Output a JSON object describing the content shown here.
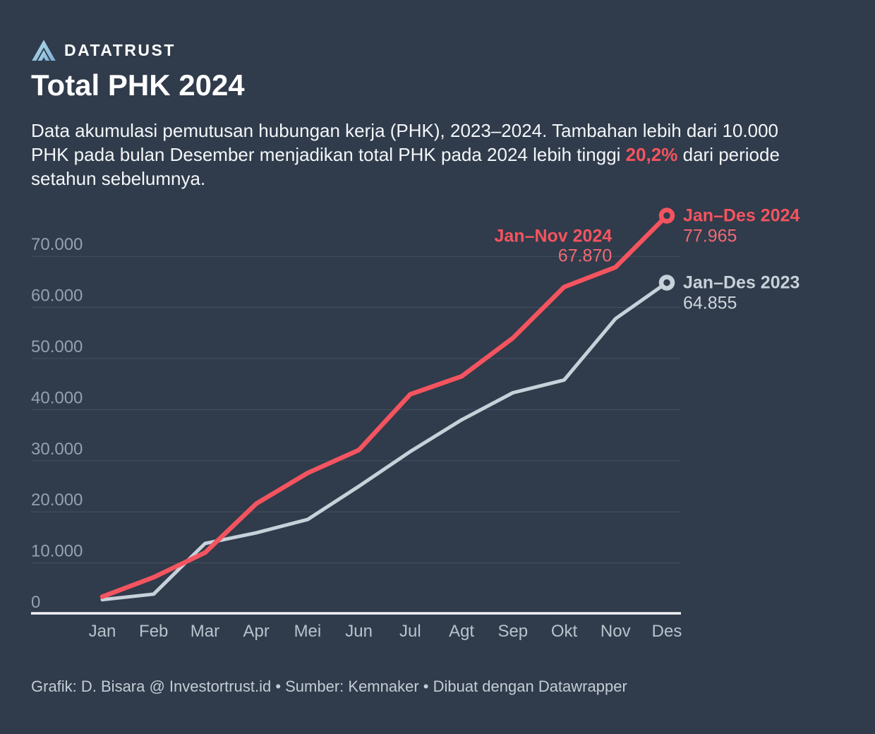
{
  "brand": {
    "name": "DATATRUST",
    "logo_icon": "datatrust-mark"
  },
  "title": "Total PHK 2024",
  "description": {
    "lines": [
      {
        "parts": [
          {
            "text": "Data akumulasi pemutusan hubungan kerja (PHK), 2023–2024. Tambahan lebih dari 10.000"
          }
        ]
      },
      {
        "parts": [
          {
            "text": "PHK pada bulan Desember menjadikan total PHK pada 2024 lebih tinggi "
          },
          {
            "text": "20,2%",
            "highlight": true
          },
          {
            "text": " dari periode"
          }
        ]
      },
      {
        "parts": [
          {
            "text": "setahun sebelumnya."
          }
        ]
      }
    ]
  },
  "footer": {
    "text": "Grafik: D. Bisara @ Investortrust.id • Sumber: Kemnaker • Dibuat dengan Datawrapper"
  },
  "colors": {
    "background": "#303b4b",
    "accent_red": "#f4545f",
    "red_value_text": "#f06a74",
    "grey_line": "#c7d1da",
    "grey_label_text": "#c6d0d9",
    "grey_value_text": "#cdd6de",
    "y_tick_text": "#94a1af",
    "x_tick_text": "#b8c3cd",
    "gridline": "#445063",
    "axis_line": "#eff3f6",
    "logo_blue_light": "#b7dcee",
    "logo_blue_dark": "#79afd3"
  },
  "chart_data": {
    "type": "line",
    "title": "Total PHK 2024",
    "subtitle_note": "Data akumulasi PHK 2023–2024, nilai kumulatif per bulan",
    "x_categories": [
      "Jan",
      "Feb",
      "Mar",
      "Apr",
      "Mei",
      "Jun",
      "Jul",
      "Agt",
      "Sep",
      "Okt",
      "Nov",
      "Des"
    ],
    "series": [
      {
        "name": "Jan–Des 2024",
        "color": "#f4545f",
        "value_text_color": "#f06a74",
        "values": [
          3400,
          7200,
          12000,
          21600,
          27600,
          32100,
          43000,
          46500,
          54000,
          64000,
          67870,
          77965
        ]
      },
      {
        "name": "Jan–Des 2023",
        "color": "#c7d1da",
        "value_text_color": "#cdd6de",
        "values": [
          2800,
          3900,
          13800,
          15900,
          18500,
          25000,
          31800,
          38000,
          43300,
          45800,
          57800,
          64855
        ]
      }
    ],
    "ylim": [
      0,
      80000
    ],
    "yticks": [
      {
        "value": 0,
        "label": "0"
      },
      {
        "value": 10000,
        "label": "10.000"
      },
      {
        "value": 20000,
        "label": "20.000"
      },
      {
        "value": 30000,
        "label": "30.000"
      },
      {
        "value": 40000,
        "label": "40.000"
      },
      {
        "value": 50000,
        "label": "50.000"
      },
      {
        "value": 60000,
        "label": "60.000"
      },
      {
        "value": 70000,
        "label": "70.000"
      }
    ],
    "grid": "horizontal",
    "legend_position": "direct-labels-right",
    "annotations": [
      {
        "title": "Jan–Nov 2024",
        "value": "67.870",
        "series": 0,
        "month": 10,
        "placement": "above-left"
      },
      {
        "title": "Jan–Des 2024",
        "value": "77.965",
        "series": 0,
        "month": 11,
        "placement": "right"
      },
      {
        "title": "Jan–Des 2023",
        "value": "64.855",
        "series": 1,
        "month": 11,
        "placement": "right"
      }
    ]
  }
}
